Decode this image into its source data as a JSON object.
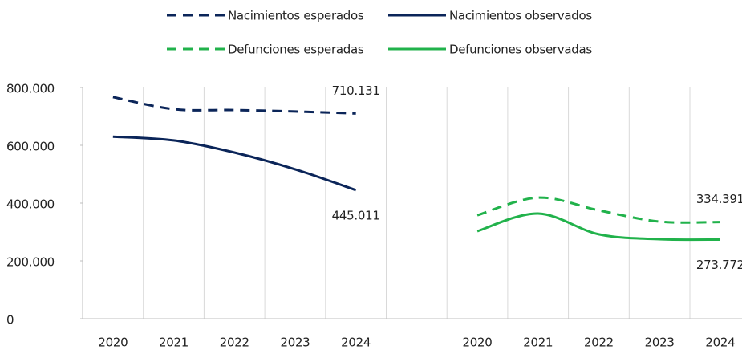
{
  "chart_data": {
    "type": "line",
    "categories": [
      "2020",
      "2021",
      "2022",
      "2023",
      "2024",
      null,
      "2020",
      "2021",
      "2022",
      "2023",
      "2024"
    ],
    "series": [
      {
        "name": "Nacimientos esperados",
        "color": "#0b2559",
        "dash": true,
        "values": [
          767000,
          725000,
          722000,
          717000,
          710131,
          null,
          null,
          null,
          null,
          null,
          null
        ],
        "value_labels": [
          null,
          null,
          null,
          null,
          "710.131",
          null,
          null,
          null,
          null,
          null,
          null
        ]
      },
      {
        "name": "Nacimientos observados",
        "color": "#0b2559",
        "dash": false,
        "values": [
          630000,
          617000,
          575000,
          517000,
          445011,
          null,
          null,
          null,
          null,
          null,
          null
        ],
        "value_labels": [
          null,
          null,
          null,
          null,
          "445.011",
          null,
          null,
          null,
          null,
          null,
          null
        ]
      },
      {
        "name": "Defunciones esperadas",
        "color": "#21b24b",
        "dash": true,
        "values": [
          null,
          null,
          null,
          null,
          null,
          null,
          358000,
          419000,
          375000,
          336000,
          334391
        ],
        "value_labels": [
          null,
          null,
          null,
          null,
          null,
          null,
          null,
          null,
          null,
          null,
          "334.391"
        ]
      },
      {
        "name": "Defunciones observadas",
        "color": "#21b24b",
        "dash": false,
        "values": [
          null,
          null,
          null,
          null,
          null,
          null,
          303000,
          364000,
          292000,
          275000,
          273772
        ],
        "value_labels": [
          null,
          null,
          null,
          null,
          null,
          null,
          null,
          null,
          null,
          null,
          "273.772"
        ]
      }
    ],
    "ylim": [
      0,
      800000
    ],
    "yticks": [
      0,
      {
        "value": 200000,
        "label": "200.000"
      },
      {
        "value": 400000,
        "label": "400.000"
      },
      {
        "value": 600000,
        "label": "600.000"
      },
      {
        "value": 800000,
        "label": "800.000"
      }
    ],
    "grid": "x",
    "legend": "top"
  }
}
